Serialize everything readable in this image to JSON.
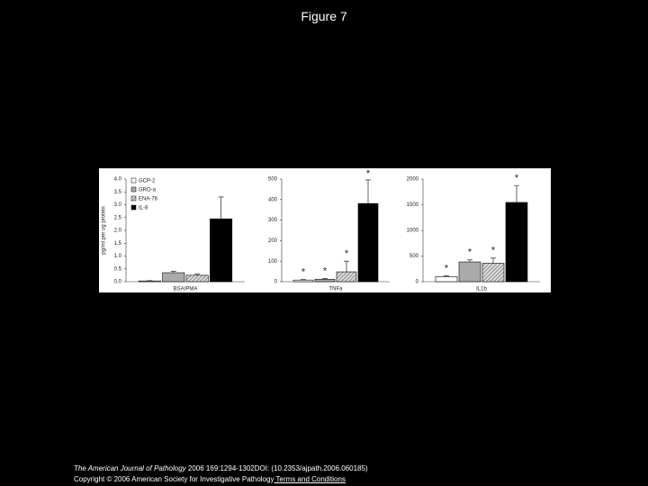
{
  "title": "Figure 7",
  "chart_data": [
    {
      "type": "bar",
      "y_label": "pg/ml per ug protein",
      "categories": [
        "BSA/PMA"
      ],
      "ylim": [
        0,
        4
      ],
      "yticks": [
        {
          "value": 0,
          "label": "0.0"
        },
        0.5,
        {
          "value": 1,
          "label": "1.0"
        },
        1.5,
        {
          "value": 2,
          "label": "2.0"
        },
        2.5,
        {
          "value": 3,
          "label": "3.0"
        },
        3.5,
        {
          "value": 4,
          "label": "4.0"
        }
      ],
      "legend": "top-left",
      "series": [
        {
          "name": "GCP-2",
          "color": "#ffffff",
          "values": [
            0.03
          ],
          "errors": [
            0.01
          ]
        },
        {
          "name": "GRO-a",
          "color": "#aaaaaa",
          "values": [
            0.35
          ],
          "errors": [
            0.05
          ]
        },
        {
          "name": "ENA-78",
          "color": "hatch",
          "values": [
            0.25
          ],
          "errors": [
            0.04
          ]
        },
        {
          "name": "IL-8",
          "color": "#000000",
          "values": [
            2.45
          ],
          "errors": [
            0.85
          ]
        }
      ]
    },
    {
      "type": "bar",
      "categories": [
        "TNFa"
      ],
      "ylim": [
        0,
        500
      ],
      "yticks": [
        0,
        100,
        200,
        300,
        400,
        500
      ],
      "series": [
        {
          "color": "#ffffff",
          "values": [
            8
          ],
          "errors": [
            2
          ],
          "marks": [
            "*"
          ]
        },
        {
          "color": "#aaaaaa",
          "values": [
            12
          ],
          "errors": [
            3
          ],
          "marks": [
            "*"
          ]
        },
        {
          "color": "hatch",
          "values": [
            48
          ],
          "errors": [
            52
          ],
          "marks": [
            "*"
          ]
        },
        {
          "color": "#000000",
          "values": [
            381
          ],
          "errors": [
            115
          ],
          "marks": [
            "*"
          ]
        }
      ]
    },
    {
      "type": "bar",
      "categories": [
        "IL1b"
      ],
      "ylim": [
        0,
        2000
      ],
      "yticks": [
        0,
        500,
        1000,
        1500,
        2000
      ],
      "series": [
        {
          "color": "#ffffff",
          "values": [
            100
          ],
          "errors": [
            15
          ],
          "marks": [
            "*"
          ]
        },
        {
          "color": "#aaaaaa",
          "values": [
            385
          ],
          "errors": [
            40
          ],
          "marks": [
            "*"
          ]
        },
        {
          "color": "hatch",
          "values": [
            360
          ],
          "errors": [
            100
          ],
          "marks": [
            "*"
          ]
        },
        {
          "color": "#000000",
          "values": [
            1545
          ],
          "errors": [
            330
          ],
          "marks": [
            "*"
          ]
        }
      ]
    }
  ],
  "footer": {
    "journal": "The American Journal of Pathology",
    "citation": " 2006 169:1294-1302DOI: (10.2353/ajpath.2006.060185)",
    "copyright": "Copyright © 2006 American Society for Investigative Pathology",
    "link": " Terms and Conditions"
  }
}
